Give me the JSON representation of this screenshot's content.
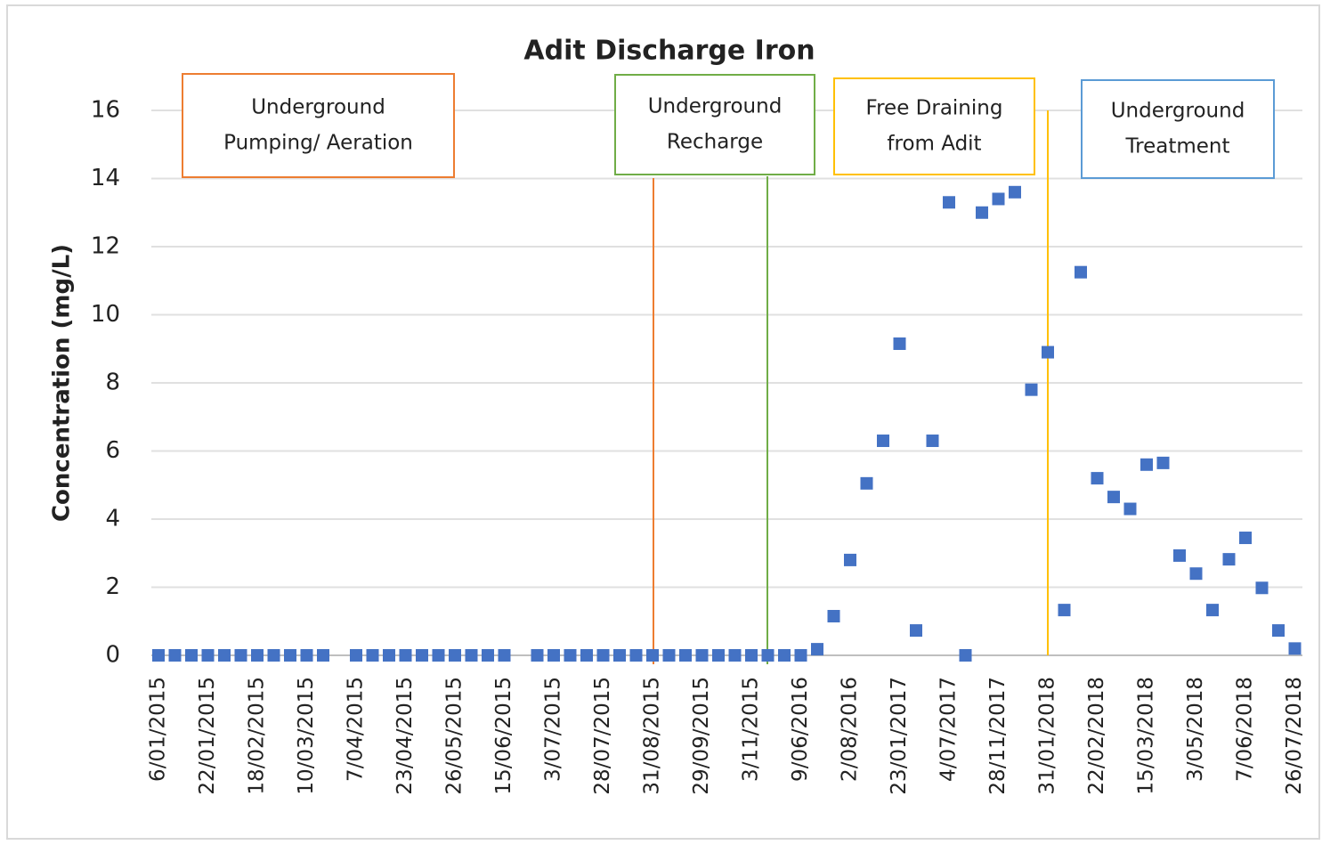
{
  "chart_data": {
    "type": "scatter",
    "title": "Adit Discharge Iron",
    "y_label": "Concentration (mg/L)",
    "categories": [
      "6/01/2015",
      null,
      null,
      "22/01/2015",
      null,
      null,
      "18/02/2015",
      null,
      null,
      "10/03/2015",
      null,
      null,
      "7/04/2015",
      null,
      null,
      "23/04/2015",
      null,
      null,
      "26/05/2015",
      null,
      null,
      "15/06/2015",
      null,
      null,
      "3/07/2015",
      null,
      null,
      "28/07/2015",
      null,
      null,
      "31/08/2015",
      null,
      null,
      "29/09/2015",
      null,
      null,
      "3/11/2015",
      null,
      null,
      "9/06/2016",
      null,
      null,
      "2/08/2016",
      null,
      null,
      "23/01/2017",
      null,
      null,
      "4/07/2017",
      null,
      null,
      "28/11/2017",
      null,
      null,
      "31/01/2018",
      null,
      null,
      "22/02/2018",
      null,
      null,
      "15/03/2018",
      null,
      null,
      "3/05/2018",
      null,
      null,
      "7/06/2018",
      null,
      null,
      "26/07/2018"
    ],
    "values": [
      0,
      0,
      0,
      0,
      0,
      0,
      0,
      0,
      0,
      0,
      0,
      null,
      0,
      0,
      0,
      0,
      0,
      0,
      0,
      0,
      0,
      0,
      null,
      0,
      0,
      0,
      0,
      0,
      0,
      0,
      0,
      0,
      0,
      0,
      0,
      0,
      0,
      0,
      0,
      0,
      0.18,
      1.15,
      2.8,
      5.05,
      6.3,
      9.15,
      0.73,
      6.3,
      13.3,
      0,
      13.0,
      13.4,
      13.6,
      7.8,
      8.9,
      1.33,
      11.25,
      5.2,
      4.65,
      4.3,
      5.6,
      5.65,
      2.93,
      2.4,
      1.33,
      2.82,
      3.45,
      1.98,
      0.73,
      0.2
    ],
    "color": "#4472c4",
    "ylim": [
      0,
      16
    ],
    "yticks": [
      0,
      2,
      4,
      6,
      8,
      10,
      12,
      14,
      16
    ],
    "grid": true,
    "annotations": [
      {
        "lines": [
          "Underground",
          "Pumping/ Aeration"
        ],
        "color": "#ed7d31"
      },
      {
        "lines": [
          "Underground",
          "Recharge"
        ],
        "color": "#70ad47"
      },
      {
        "lines": [
          "Free Draining",
          "from Adit"
        ],
        "color": "#ffc000"
      },
      {
        "lines": [
          "Underground",
          "Treatment"
        ],
        "color": "#5b9bd5"
      }
    ]
  }
}
